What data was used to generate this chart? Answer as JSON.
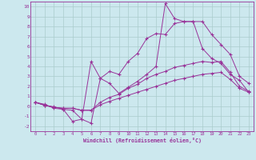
{
  "xlabel": "Windchill (Refroidissement éolien,°C)",
  "bg_color": "#cce8ee",
  "line_color": "#993399",
  "grid_color": "#aacccc",
  "xlim": [
    -0.5,
    23.5
  ],
  "ylim": [
    -2.5,
    10.5
  ],
  "xticks": [
    0,
    1,
    2,
    3,
    4,
    5,
    6,
    7,
    8,
    9,
    10,
    11,
    12,
    13,
    14,
    15,
    16,
    17,
    18,
    19,
    20,
    21,
    22,
    23
  ],
  "yticks": [
    -2,
    -1,
    0,
    1,
    2,
    3,
    4,
    5,
    6,
    7,
    8,
    9,
    10
  ],
  "line1_x": [
    0,
    1,
    2,
    3,
    4,
    5,
    6,
    7,
    8,
    9,
    10,
    11,
    12,
    13,
    14,
    15,
    16,
    17,
    18,
    19,
    20,
    21,
    22,
    23
  ],
  "line1_y": [
    0.4,
    0.2,
    -0.2,
    -0.3,
    -0.4,
    -1.3,
    -1.7,
    2.8,
    3.5,
    3.2,
    4.5,
    5.3,
    6.8,
    7.3,
    7.2,
    8.3,
    8.5,
    8.5,
    8.5,
    7.2,
    6.2,
    5.2,
    3.0,
    2.3
  ],
  "line2_x": [
    0,
    1,
    2,
    3,
    4,
    5,
    6,
    7,
    8,
    9,
    10,
    11,
    12,
    13,
    14,
    15,
    16,
    17,
    18,
    19,
    20,
    21,
    22,
    23
  ],
  "line2_y": [
    0.4,
    0.1,
    -0.05,
    -0.3,
    -1.5,
    -1.3,
    4.5,
    2.8,
    2.3,
    1.3,
    1.9,
    2.5,
    3.2,
    4.0,
    10.3,
    8.8,
    8.5,
    8.5,
    5.8,
    4.8,
    4.3,
    3.2,
    2.6,
    1.4
  ],
  "line3_x": [
    0,
    1,
    2,
    3,
    4,
    5,
    6,
    7,
    8,
    9,
    10,
    11,
    12,
    13,
    14,
    15,
    16,
    17,
    18,
    19,
    20,
    21,
    22,
    23
  ],
  "line3_y": [
    0.4,
    0.1,
    -0.1,
    -0.2,
    -0.2,
    -0.4,
    -0.4,
    0.4,
    0.9,
    1.2,
    1.8,
    2.2,
    2.8,
    3.2,
    3.5,
    3.9,
    4.1,
    4.3,
    4.5,
    4.4,
    4.5,
    3.4,
    2.0,
    1.5
  ],
  "line4_x": [
    0,
    1,
    2,
    3,
    4,
    5,
    6,
    7,
    8,
    9,
    10,
    11,
    12,
    13,
    14,
    15,
    16,
    17,
    18,
    19,
    20,
    21,
    22,
    23
  ],
  "line4_y": [
    0.4,
    0.1,
    -0.1,
    -0.2,
    -0.2,
    -0.4,
    -0.4,
    0.15,
    0.5,
    0.8,
    1.1,
    1.4,
    1.7,
    2.0,
    2.3,
    2.6,
    2.8,
    3.0,
    3.2,
    3.3,
    3.4,
    2.7,
    1.8,
    1.4
  ]
}
